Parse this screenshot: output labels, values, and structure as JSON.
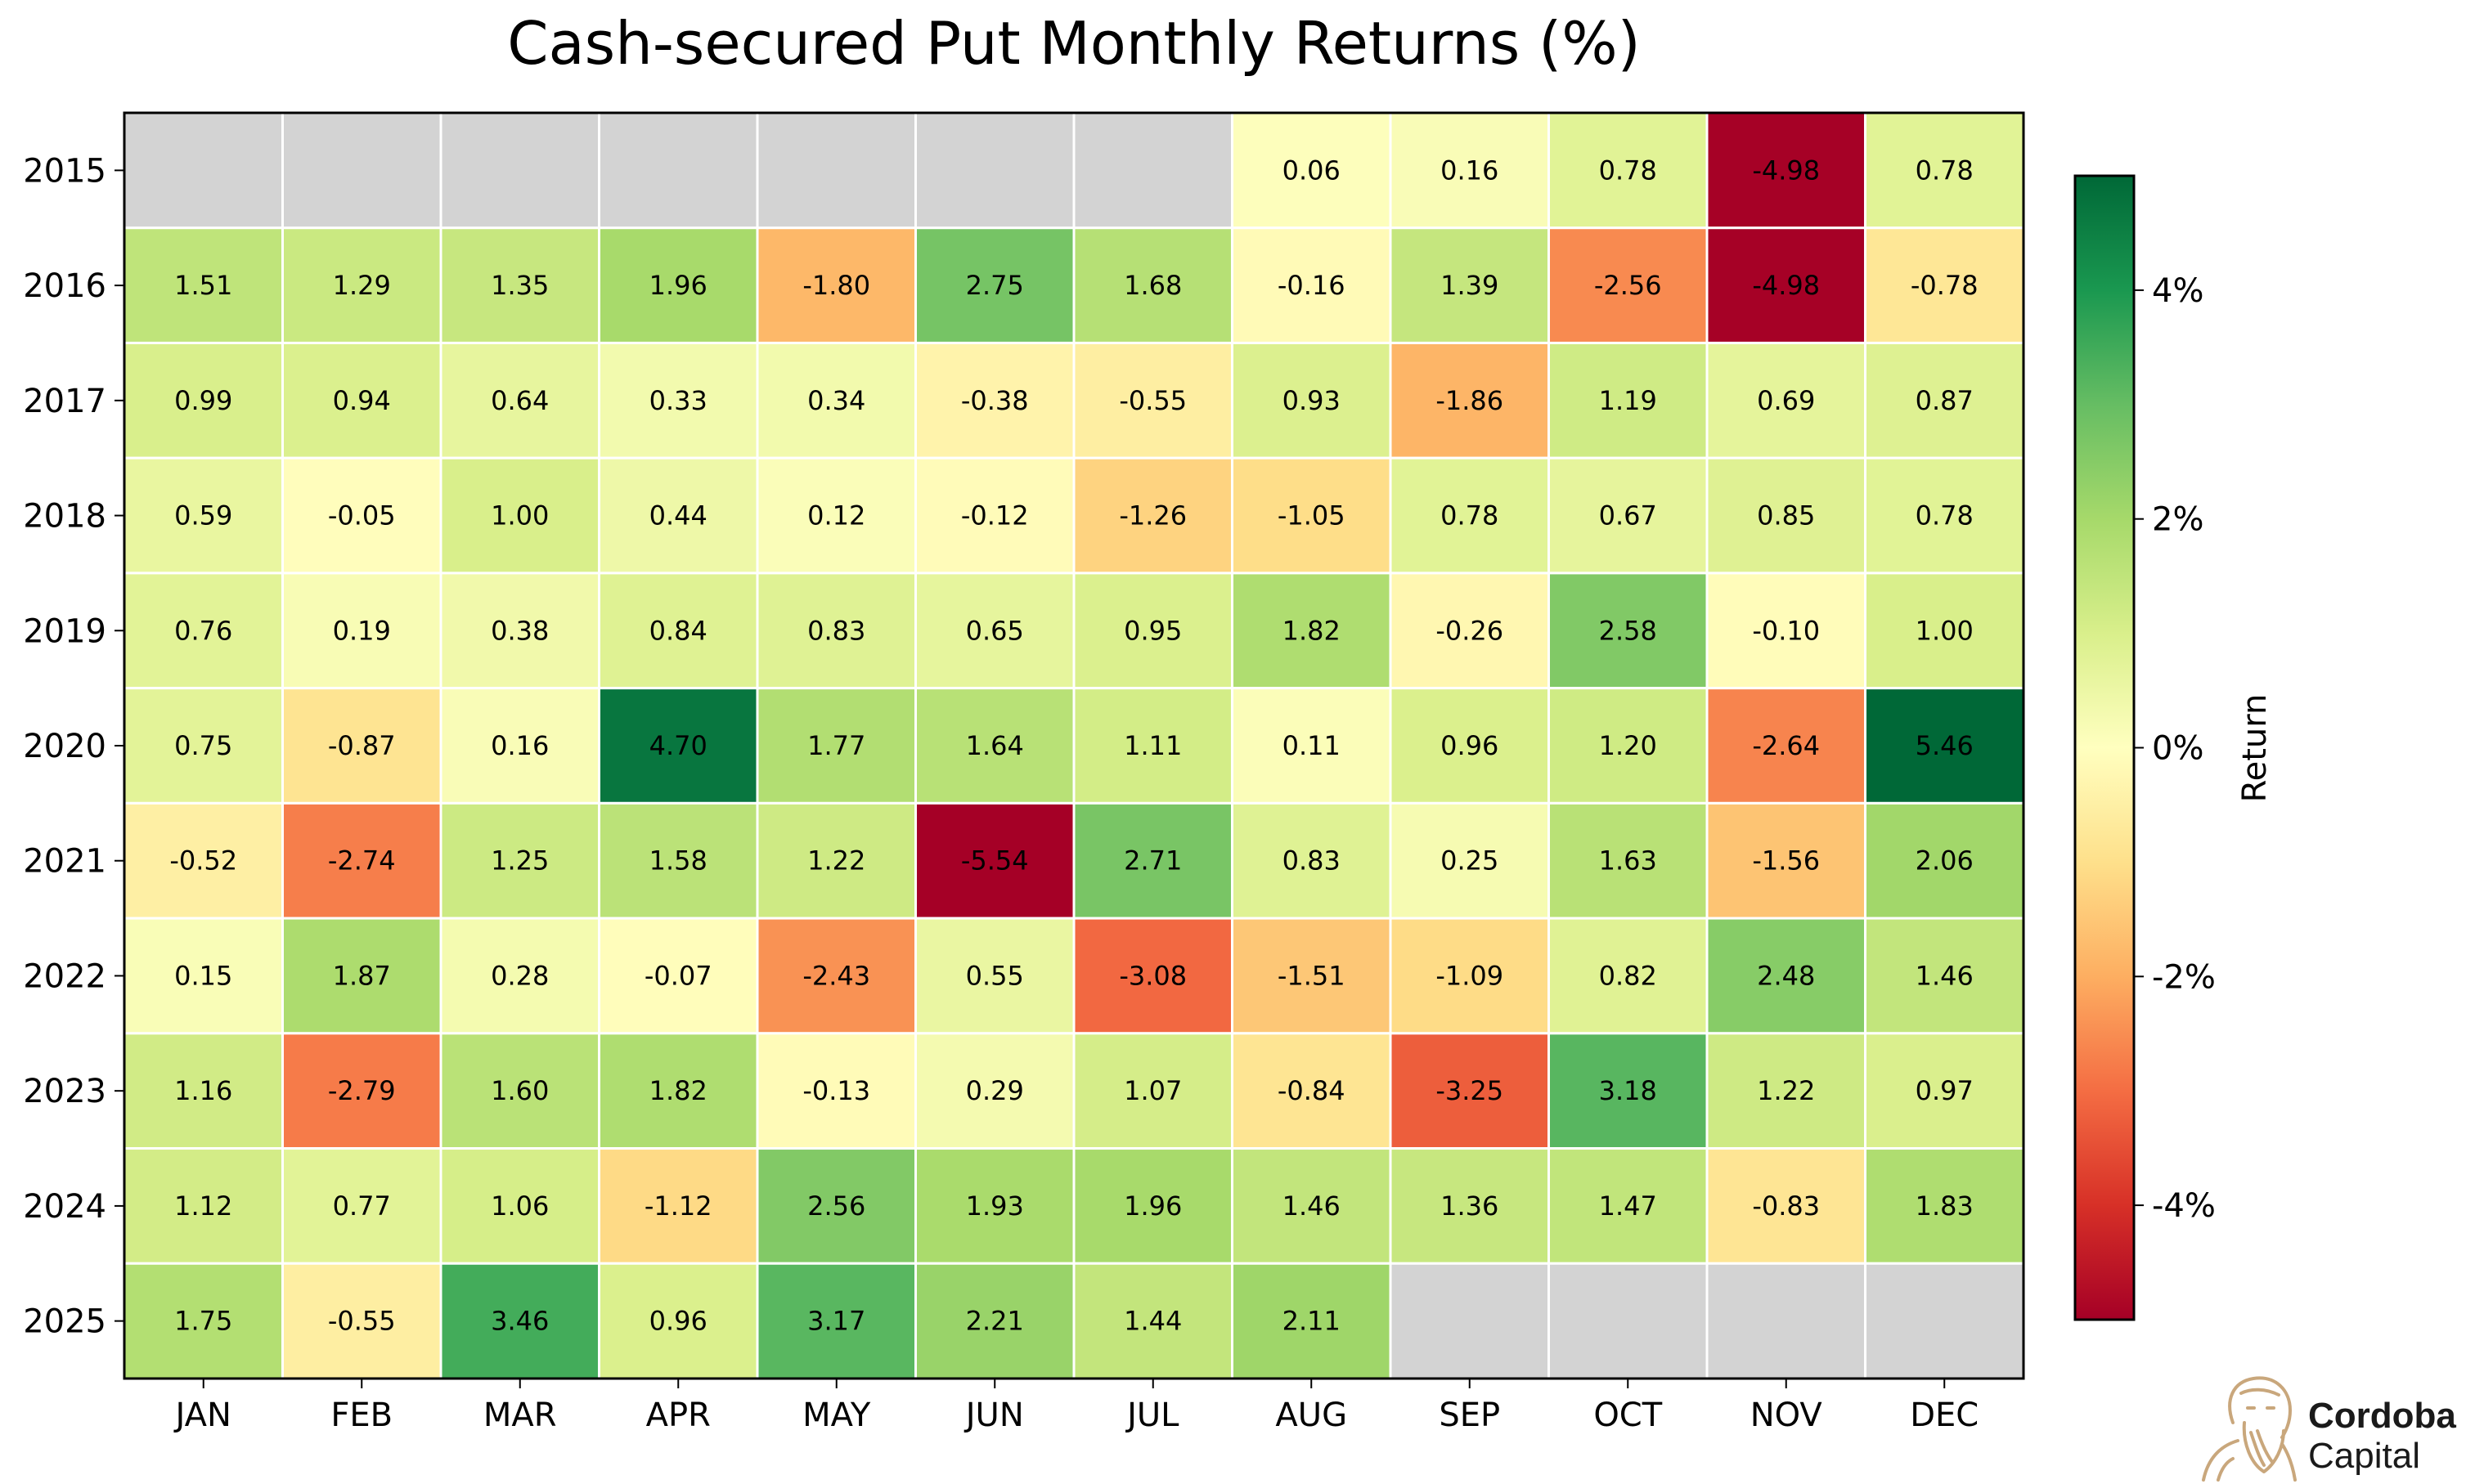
{
  "chart_data": {
    "type": "heatmap",
    "title": "Cash-secured Put Monthly Returns (%)",
    "x_categories": [
      "JAN",
      "FEB",
      "MAR",
      "APR",
      "MAY",
      "JUN",
      "JUL",
      "AUG",
      "SEP",
      "OCT",
      "NOV",
      "DEC"
    ],
    "y_categories": [
      "2015",
      "2016",
      "2017",
      "2018",
      "2019",
      "2020",
      "2021",
      "2022",
      "2023",
      "2024",
      "2025"
    ],
    "values": [
      [
        null,
        null,
        null,
        null,
        null,
        null,
        null,
        0.06,
        0.16,
        0.78,
        -4.98,
        0.78
      ],
      [
        1.51,
        1.29,
        1.35,
        1.96,
        -1.8,
        2.75,
        1.68,
        -0.16,
        1.39,
        -2.56,
        -4.98,
        -0.78
      ],
      [
        0.99,
        0.94,
        0.64,
        0.33,
        0.34,
        -0.38,
        -0.55,
        0.93,
        -1.86,
        1.19,
        0.69,
        0.87
      ],
      [
        0.59,
        -0.05,
        1.0,
        0.44,
        0.12,
        -0.12,
        -1.26,
        -1.05,
        0.78,
        0.67,
        0.85,
        0.78
      ],
      [
        0.76,
        0.19,
        0.38,
        0.84,
        0.83,
        0.65,
        0.95,
        1.82,
        -0.26,
        2.58,
        -0.1,
        1.0
      ],
      [
        0.75,
        -0.87,
        0.16,
        4.7,
        1.77,
        1.64,
        1.11,
        0.11,
        0.96,
        1.2,
        -2.64,
        5.46
      ],
      [
        -0.52,
        -2.74,
        1.25,
        1.58,
        1.22,
        -5.54,
        2.71,
        0.83,
        0.25,
        1.63,
        -1.56,
        2.06
      ],
      [
        0.15,
        1.87,
        0.28,
        -0.07,
        -2.43,
        0.55,
        -3.08,
        -1.51,
        -1.09,
        0.82,
        2.48,
        1.46
      ],
      [
        1.16,
        -2.79,
        1.6,
        1.82,
        -0.13,
        0.29,
        1.07,
        -0.84,
        -3.25,
        3.18,
        1.22,
        0.97
      ],
      [
        1.12,
        0.77,
        1.06,
        -1.12,
        2.56,
        1.93,
        1.96,
        1.46,
        1.36,
        1.47,
        -0.83,
        1.83
      ],
      [
        1.75,
        -0.55,
        3.46,
        0.96,
        3.17,
        2.21,
        1.44,
        2.11,
        null,
        null,
        null,
        null
      ]
    ],
    "value_format": "2dp",
    "colorscale": "RdYlGn",
    "vmin": -5,
    "vmax": 5,
    "missing_color": "#d3d3d3",
    "colorbar": {
      "label": "Return",
      "ticks": [
        4,
        2,
        0,
        -2,
        -4
      ],
      "tick_labels": [
        "4%",
        "2%",
        "0%",
        "-2%",
        "-4%"
      ]
    }
  },
  "brand": {
    "line1": "Cordoba",
    "line2": "Capital",
    "logo_icon": "portrait-sketch-icon",
    "logo_color": "#c9a77c"
  }
}
